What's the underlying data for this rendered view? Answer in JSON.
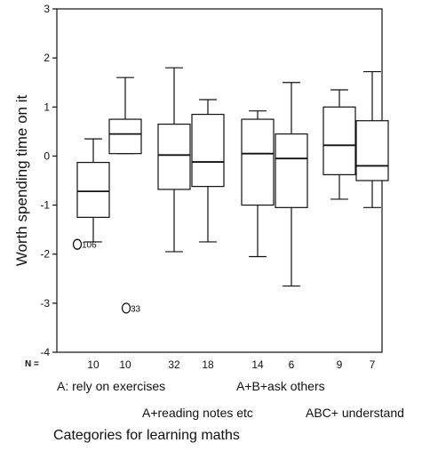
{
  "chart_data": {
    "type": "boxplot",
    "ylabel": "Worth spending time on it",
    "xlabel": "Categories for learning maths",
    "ylim": [
      -4,
      3
    ],
    "yticks": [
      -4,
      -3,
      -2,
      -1,
      0,
      1,
      2,
      3
    ],
    "n_prefix": "N =",
    "categories": [
      "A: rely on exercises",
      "A+reading notes etc",
      "A+B+ask others",
      "ABC+ understand"
    ],
    "boxes": [
      {
        "group": 0,
        "n": "10",
        "whisker_low": -1.75,
        "q1": -1.25,
        "median": -0.72,
        "q3": -0.13,
        "whisker_high": 0.35
      },
      {
        "group": 0,
        "n": "10",
        "whisker_low": 0.05,
        "q1": 0.05,
        "median": 0.45,
        "q3": 0.75,
        "whisker_high": 1.6
      },
      {
        "group": 1,
        "n": "32",
        "whisker_low": -1.95,
        "q1": -0.68,
        "median": 0.02,
        "q3": 0.65,
        "whisker_high": 1.8
      },
      {
        "group": 1,
        "n": "18",
        "whisker_low": -1.75,
        "q1": -0.62,
        "median": -0.12,
        "q3": 0.85,
        "whisker_high": 1.15
      },
      {
        "group": 2,
        "n": "14",
        "whisker_low": -2.05,
        "q1": -1.0,
        "median": 0.05,
        "q3": 0.75,
        "whisker_high": 0.92
      },
      {
        "group": 2,
        "n": "6",
        "whisker_low": -2.65,
        "q1": -1.05,
        "median": -0.05,
        "q3": 0.45,
        "whisker_high": 1.5
      },
      {
        "group": 3,
        "n": "9",
        "whisker_low": -0.88,
        "q1": -0.38,
        "median": 0.22,
        "q3": 1.0,
        "whisker_high": 1.35
      },
      {
        "group": 3,
        "n": "7",
        "whisker_low": -1.05,
        "q1": -0.5,
        "median": -0.2,
        "q3": 0.72,
        "whisker_high": 1.72
      }
    ],
    "outliers": [
      {
        "box": 1,
        "value": -1.8,
        "label": "106"
      },
      {
        "box": 2,
        "value": -3.1,
        "label": "33"
      }
    ]
  }
}
